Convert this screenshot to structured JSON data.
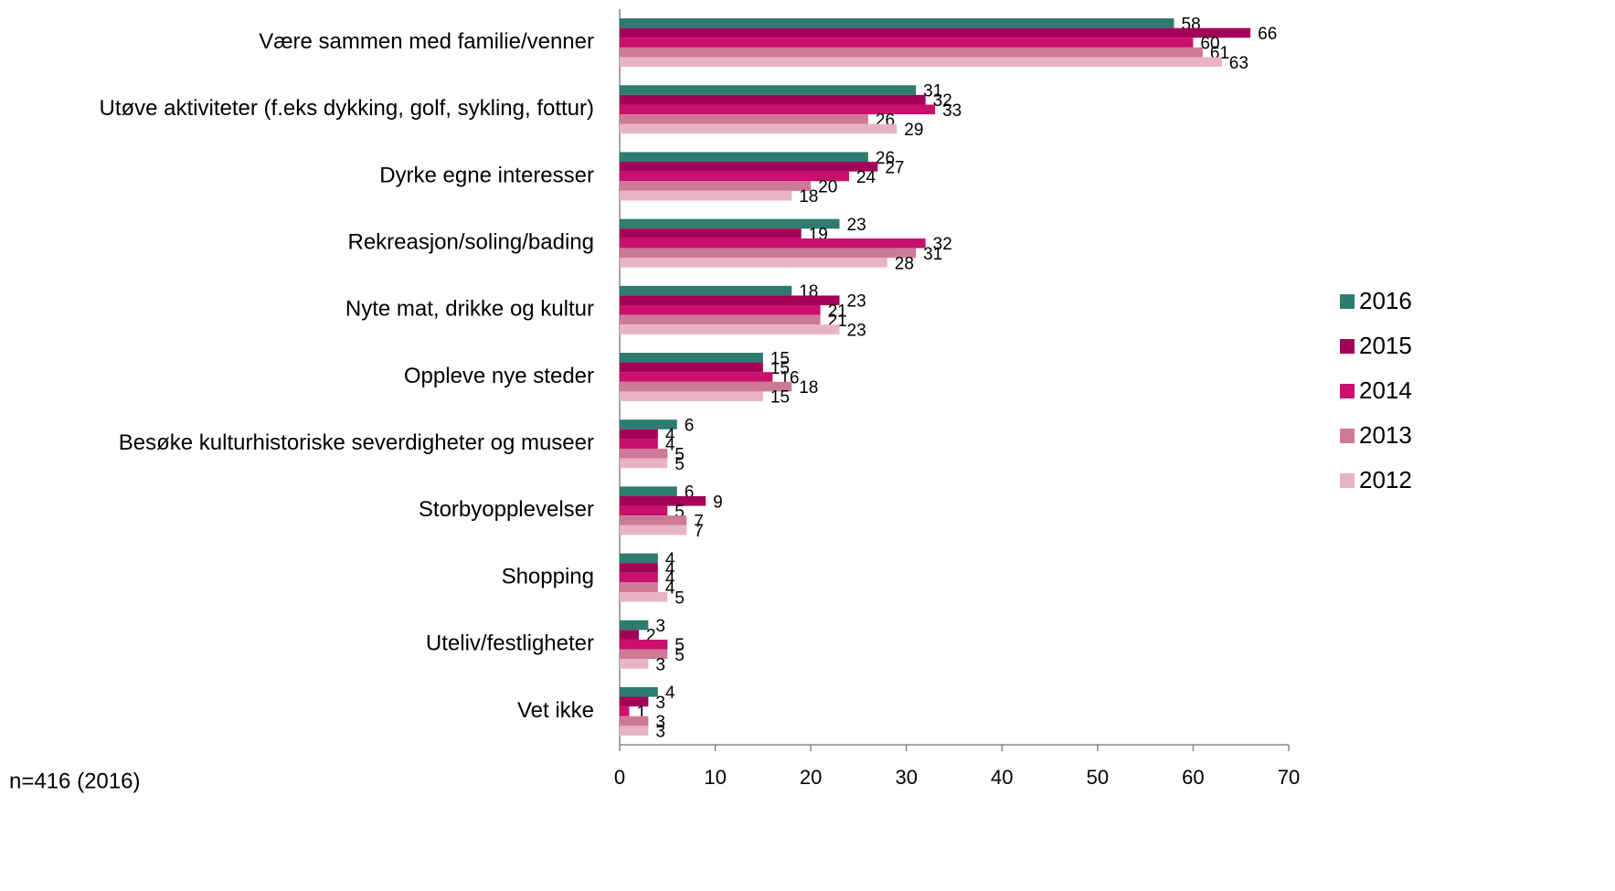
{
  "chart_data": {
    "type": "hbar",
    "categories": [
      "Være sammen med familie/venner",
      "Utøve aktiviteter (f.eks dykking, golf, sykling, fottur)",
      "Dyrke egne interesser",
      "Rekreasjon/soling/bading",
      "Nyte mat, drikke og kultur",
      "Oppleve nye steder",
      "Besøke kulturhistoriske severdigheter og museer",
      "Storbyopplevelser",
      "Shopping",
      "Uteliv/festligheter",
      "Vet ikke"
    ],
    "series": [
      {
        "name": "2016",
        "color": "#2e7b70",
        "values": [
          58,
          31,
          26,
          23,
          18,
          15,
          6,
          6,
          4,
          3,
          4
        ]
      },
      {
        "name": "2015",
        "color": "#a3005a",
        "values": [
          66,
          32,
          27,
          19,
          23,
          15,
          4,
          9,
          4,
          2,
          3
        ]
      },
      {
        "name": "2014",
        "color": "#c8106c",
        "values": [
          60,
          33,
          24,
          32,
          21,
          16,
          4,
          5,
          4,
          5,
          1
        ]
      },
      {
        "name": "2013",
        "color": "#cc7a98",
        "values": [
          61,
          26,
          20,
          31,
          21,
          18,
          5,
          7,
          4,
          5,
          3
        ]
      },
      {
        "name": "2012",
        "color": "#e8b4c4",
        "values": [
          63,
          29,
          18,
          28,
          23,
          15,
          5,
          7,
          5,
          3,
          3
        ]
      }
    ],
    "xlim": [
      0,
      70
    ],
    "xticks": [
      0,
      10,
      20,
      30,
      40,
      50,
      60,
      70
    ],
    "legend": "right",
    "note": "n=416 (2016)"
  }
}
